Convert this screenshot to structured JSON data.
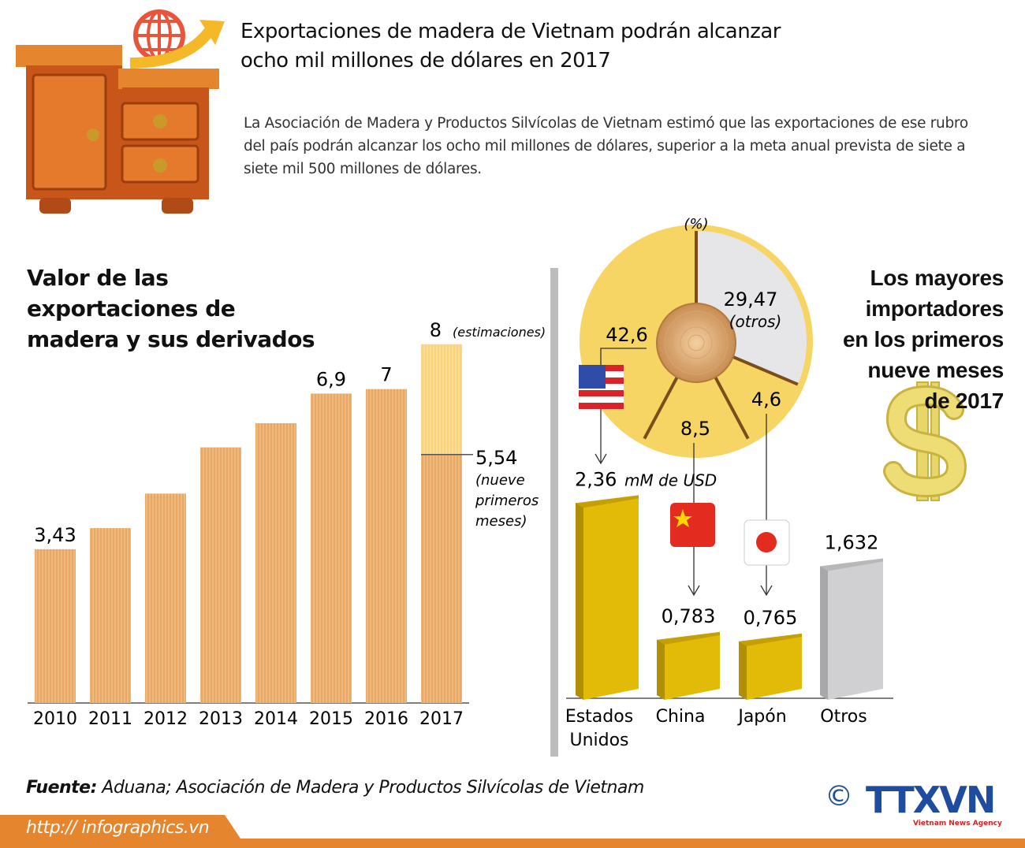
{
  "header": {
    "title_line1": "Exportaciones de madera de Vietnam podrán alcanzar",
    "title_line2": "ocho mil millones de dólares en 2017",
    "intro": "La Asociación de Madera y Productos Silvícolas  de Vietnam estimó que las exportaciones de ese rubro del país podrán alcanzar los ocho mil millones de dólares, superior a la meta anual prevista de siete a siete mil 500 millones de dólares."
  },
  "icons": {
    "furniture": "cabinet-illustration",
    "globe": "globe-arrow-icon",
    "dollar": "dollar-sign-icon",
    "copyright": "copyright-icon"
  },
  "colors": {
    "wood": "#E8A765",
    "wood_light": "#F7D27A",
    "pie_yellow": "#F7D565",
    "pie_grey": "#E6E6E8",
    "bar_gold": "#E2BA08",
    "bar_grey": "#D0D0D2",
    "accent_orange": "#E5852E",
    "logo_blue": "#1F4C9E"
  },
  "chart_data": [
    {
      "type": "bar",
      "title": "Valor de las exportaciones de madera y sus derivados",
      "title_lines": [
        "Valor de las",
        "exportaciones de",
        "madera y sus derivados"
      ],
      "categories": [
        "2010",
        "2011",
        "2012",
        "2013",
        "2014",
        "2015",
        "2016",
        "2017"
      ],
      "values": [
        3.43,
        3.9,
        4.67,
        5.7,
        6.24,
        6.9,
        7,
        8
      ],
      "labels": [
        "3,43",
        "",
        "",
        "",
        "",
        "6,9",
        "7",
        "8"
      ],
      "estimate_note": "(estimaciones)",
      "partial_2017": {
        "value": 5.54,
        "label": "5,54",
        "note_lines": [
          "(nueve",
          "primeros",
          "meses)"
        ]
      },
      "ylim": [
        0,
        8.3
      ]
    },
    {
      "type": "pie",
      "unit_label": "(%)",
      "slices": [
        {
          "name": "Estados Unidos",
          "value": 42.6,
          "label": "42,6"
        },
        {
          "name": "otros",
          "value": 29.47,
          "label": "29,47",
          "note": "(otros)"
        },
        {
          "name": "China",
          "value": 8.5,
          "label": "8,5"
        },
        {
          "name": "Japón",
          "value": 4.6,
          "label": "4,6"
        }
      ]
    },
    {
      "type": "bar",
      "title_lines": [
        "Los mayores",
        "importadores",
        "en los primeros",
        "nueve meses",
        "de 2017"
      ],
      "unit": "mM de USD",
      "categories": [
        [
          "Estados",
          "Unidos"
        ],
        [
          "China"
        ],
        [
          "Japón"
        ],
        [
          "Otros"
        ]
      ],
      "values": [
        2.36,
        0.783,
        0.765,
        1.632
      ],
      "labels": [
        "2,36",
        "0,783",
        "0,765",
        "1,632"
      ],
      "flags": [
        "usa-flag-icon",
        "china-flag-icon",
        "japan-flag-icon",
        ""
      ],
      "ylim": [
        0,
        2.5
      ]
    }
  ],
  "footer": {
    "source_label": "Fuente:",
    "source_text": " Aduana; Asociación de Madera y Productos Silvícolas de Vietnam",
    "url": "http:// infographics.vn",
    "copyright": "©",
    "logo": "TTXVN",
    "logo_sub": "Vietnam News Agency"
  }
}
